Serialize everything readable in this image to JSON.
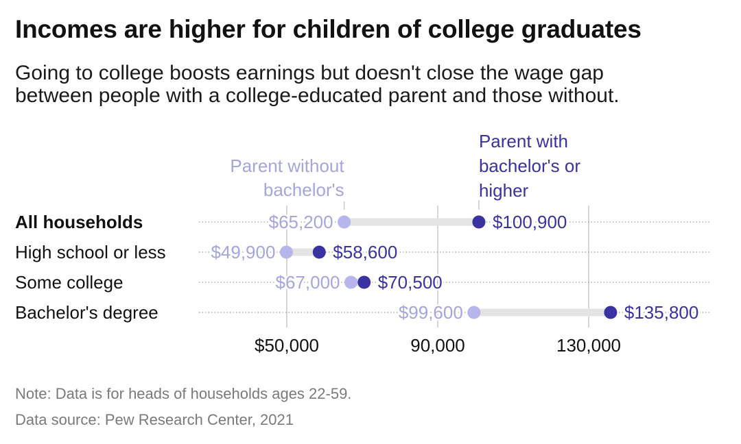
{
  "title": "Incomes are higher for children of college graduates",
  "subtitle_line1": "Going to college boosts earnings but doesn't close the wage gap",
  "subtitle_line2": "between people with a college-educated parent and those without.",
  "note": "Note: Data is for heads of households ages 22-59.",
  "source": "Data source: Pew Research Center, 2021",
  "colors": {
    "without": "#b8b4ec",
    "with": "#3a32a0",
    "without_text": "#a8a4de",
    "connector": "#e4e4e4",
    "grid": "#c8c8c8",
    "row_line": "#9a9a9a"
  },
  "chart_data": {
    "type": "dumbbell",
    "xlim": [
      38000,
      150000
    ],
    "ticks": [
      {
        "value": 50000,
        "label": "$50,000"
      },
      {
        "value": 90000,
        "label": "90,000"
      },
      {
        "value": 130000,
        "label": "130,000"
      }
    ],
    "series": [
      {
        "name": "Parent without bachelor's",
        "label_lines": [
          "Parent without",
          "bachelor's"
        ]
      },
      {
        "name": "Parent with bachelor's or higher",
        "label_lines": [
          "Parent with",
          "bachelor's or",
          "higher"
        ]
      }
    ],
    "rows": [
      {
        "category": "All households",
        "bold": true,
        "without": 65200,
        "without_label": "$65,200",
        "with": 100900,
        "with_label": "$100,900"
      },
      {
        "category": "High school or less",
        "bold": false,
        "without": 49900,
        "without_label": "$49,900",
        "with": 58600,
        "with_label": "$58,600"
      },
      {
        "category": "Some college",
        "bold": false,
        "without": 67000,
        "without_label": "$67,000",
        "with": 70500,
        "with_label": "$70,500"
      },
      {
        "category": "Bachelor's degree",
        "bold": false,
        "without": 99600,
        "without_label": "$99,600",
        "with": 135800,
        "with_label": "$135,800"
      }
    ]
  }
}
